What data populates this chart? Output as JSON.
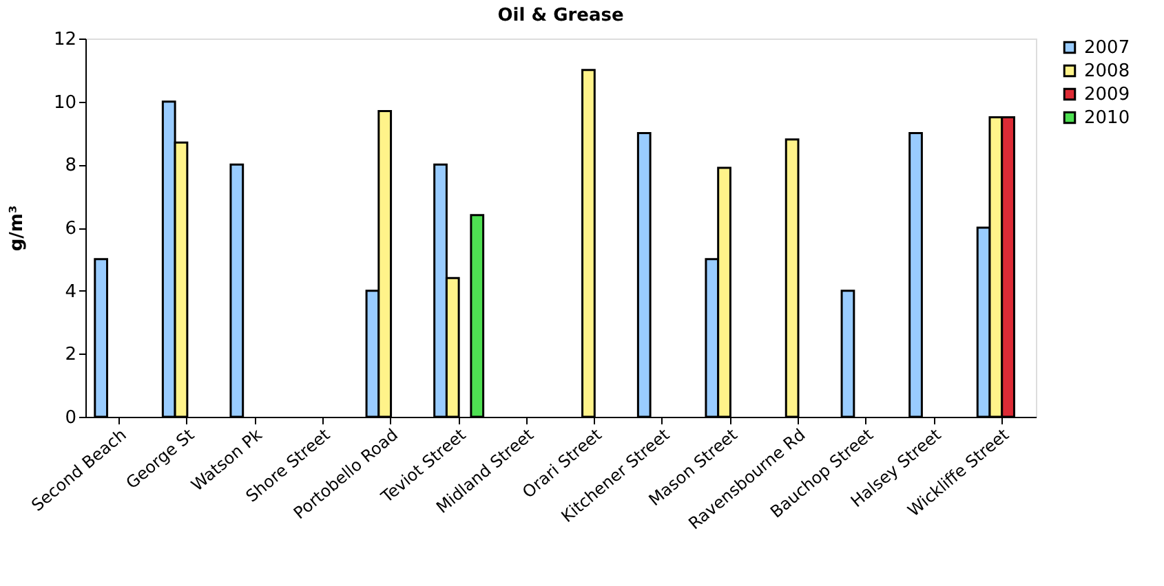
{
  "chart_data": {
    "type": "bar",
    "title": "Oil & Grease",
    "ylabel": "g/m³",
    "categories": [
      "Second Beach",
      "George St",
      "Watson Pk",
      "Shore Street",
      "Portobello Road",
      "Teviot Street",
      "Midland Street",
      "Orari Street",
      "Kitchener Street",
      "Mason Street",
      "Ravensbourne Rd",
      "Bauchop Street",
      "Halsey Street",
      "Wickliffe Street"
    ],
    "series": [
      {
        "name": "2007",
        "color": "#99ccff",
        "values": [
          5,
          10,
          8,
          null,
          4,
          8,
          null,
          null,
          9,
          5,
          null,
          4,
          9,
          6
        ]
      },
      {
        "name": "2008",
        "color": "#fff38a",
        "values": [
          null,
          8.7,
          null,
          null,
          9.7,
          4.4,
          null,
          11,
          null,
          7.9,
          8.8,
          null,
          null,
          9.5
        ]
      },
      {
        "name": "2009",
        "color": "#dd2b35",
        "values": [
          null,
          null,
          null,
          null,
          null,
          null,
          null,
          null,
          null,
          null,
          null,
          null,
          null,
          9.5
        ]
      },
      {
        "name": "2010",
        "color": "#4ee052",
        "values": [
          null,
          null,
          null,
          null,
          null,
          6.4,
          null,
          null,
          null,
          null,
          null,
          null,
          null,
          null
        ]
      }
    ],
    "ylim": [
      0,
      12
    ],
    "yticks": [
      0,
      2,
      4,
      6,
      8,
      10,
      12
    ],
    "grid": false,
    "legend": "right"
  }
}
